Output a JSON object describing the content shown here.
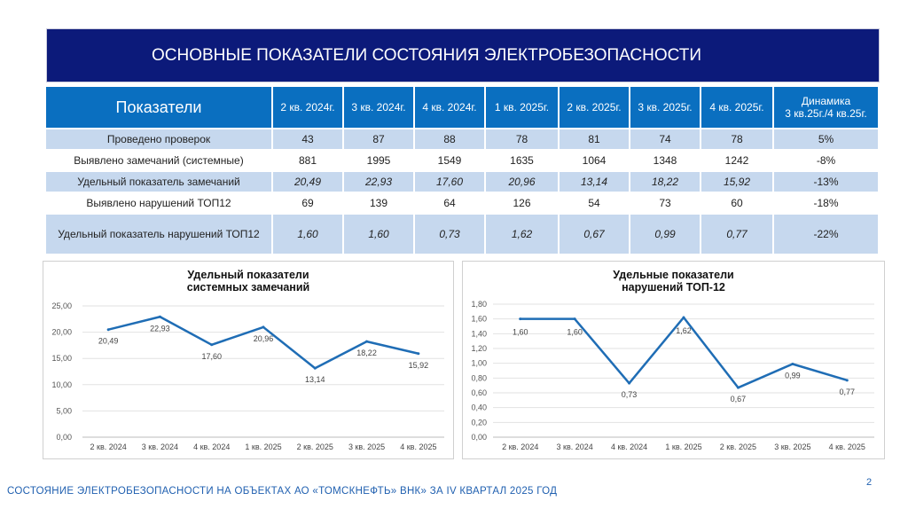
{
  "title": "ОСНОВНЫЕ ПОКАЗАТЕЛИ СОСТОЯНИЯ ЭЛЕКТРОБЕЗОПАСНОСТИ",
  "table": {
    "headers": [
      "Показатели",
      "2 кв. 2024г.",
      "3 кв. 2024г.",
      "4 кв. 2024г.",
      "1 кв. 2025г.",
      "2 кв. 2025г.",
      "3 кв. 2025г.",
      "4 кв. 2025г."
    ],
    "dyn_header": [
      "Динамика",
      "3 кв.25г./4 кв.25г."
    ],
    "rows": [
      {
        "label": "Проведено проверок",
        "values": [
          "43",
          "87",
          "88",
          "78",
          "81",
          "74",
          "78"
        ],
        "dyn": "5%"
      },
      {
        "label": "Выявлено замечаний (системные)",
        "values": [
          "881",
          "1995",
          "1549",
          "1635",
          "1064",
          "1348",
          "1242"
        ],
        "dyn": "-8%"
      },
      {
        "label": "Удельный показатель замечаний",
        "values": [
          "20,49",
          "22,93",
          "17,60",
          "20,96",
          "13,14",
          "18,22",
          "15,92"
        ],
        "dyn": "-13%"
      },
      {
        "label": "Выявлено нарушений ТОП12",
        "values": [
          "69",
          "139",
          "64",
          "126",
          "54",
          "73",
          "60"
        ],
        "dyn": "-18%"
      },
      {
        "label": "Удельный показатель нарушений ТОП12",
        "values": [
          "1,60",
          "1,60",
          "0,73",
          "1,62",
          "0,67",
          "0,99",
          "0,77"
        ],
        "dyn": "-22%"
      }
    ]
  },
  "chart_data": [
    {
      "type": "line",
      "title": "Удельный показатели системных замечаний",
      "title_lines": [
        "Удельный показатели",
        "системных замечаний"
      ],
      "categories": [
        "2 кв. 2024",
        "3 кв. 2024",
        "4 кв. 2024",
        "1 кв. 2025",
        "2 кв. 2025",
        "3 кв. 2025",
        "4 кв. 2025"
      ],
      "values": [
        20.49,
        22.93,
        17.6,
        20.96,
        13.14,
        18.22,
        15.92
      ],
      "labels": [
        "20,49",
        "22,93",
        "17,60",
        "20,96",
        "13,14",
        "18,22",
        "15,92"
      ],
      "ylim": [
        0,
        25
      ],
      "yticks": [
        "0,00",
        "5,00",
        "10,00",
        "15,00",
        "20,00",
        "25,00"
      ],
      "grid": true,
      "color": "#1f6db5"
    },
    {
      "type": "line",
      "title": "Удельные показатели нарушений ТОП-12",
      "title_lines": [
        "Удельные показатели",
        "нарушений ТОП-12"
      ],
      "categories": [
        "2 кв. 2024",
        "3 кв. 2024",
        "4 кв. 2024",
        "1 кв. 2025",
        "2 кв. 2025",
        "3 кв. 2025",
        "4 кв. 2025"
      ],
      "values": [
        1.6,
        1.6,
        0.73,
        1.62,
        0.67,
        0.99,
        0.77
      ],
      "labels": [
        "1,60",
        "1,60",
        "0,73",
        "1,62",
        "0,67",
        "0,99",
        "0,77"
      ],
      "ylim": [
        0,
        1.8
      ],
      "yticks": [
        "0,00",
        "0,20",
        "0,40",
        "0,60",
        "0,80",
        "1,00",
        "1,20",
        "1,40",
        "1,60",
        "1,80"
      ],
      "grid": true,
      "color": "#1f6db5"
    }
  ],
  "footer": "СОСТОЯНИЕ ЭЛЕКТРОБЕЗОПАСНОСТИ НА ОБЪЕКТАХ АО «ТОМСКНЕФТЬ» ВНК» ЗА IV КВАРТАЛ 2025 ГОД",
  "page_number": "2"
}
